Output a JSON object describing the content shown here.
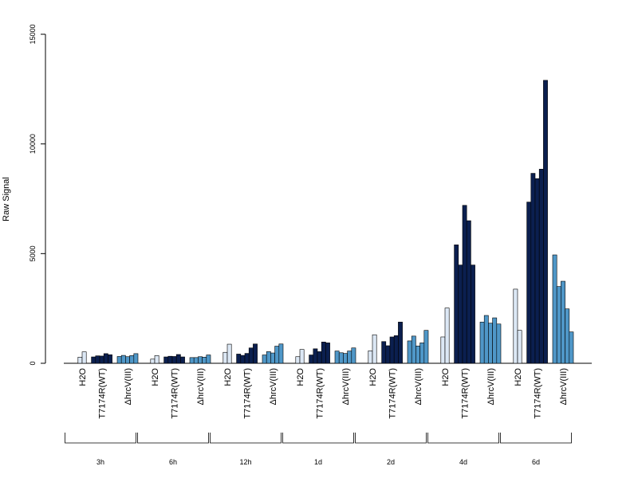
{
  "chart_data": {
    "type": "bar",
    "title": "",
    "xlabel": "",
    "ylabel": "Raw Signal",
    "ylim": [
      0,
      15000
    ],
    "yticks": [
      0,
      5000,
      10000,
      15000
    ],
    "grid": false,
    "colors": {
      "H2O": "#dce8f5",
      "T7174R(WT)": "#0b1f4f",
      "ΔhrcV(III)": "#4f97c8",
      "border": "#000000"
    },
    "groups": [
      {
        "label": "3h",
        "subgroups": [
          {
            "name": "H2O",
            "values": [
              280,
              520
            ]
          },
          {
            "name": "T7174R(WT)",
            "values": [
              290,
              340,
              330,
              440,
              390
            ]
          },
          {
            "name": "ΔhrcV(III)",
            "values": [
              310,
              360,
              300,
              350,
              440
            ]
          }
        ]
      },
      {
        "label": "6h",
        "subgroups": [
          {
            "name": "H2O",
            "values": [
              190,
              350
            ]
          },
          {
            "name": "T7174R(WT)",
            "values": [
              290,
              320,
              310,
              400,
              290
            ]
          },
          {
            "name": "ΔhrcV(III)",
            "values": [
              260,
              260,
              300,
              280,
              380
            ]
          }
        ]
      },
      {
        "label": "12h",
        "subgroups": [
          {
            "name": "H2O",
            "values": [
              500,
              870
            ]
          },
          {
            "name": "T7174R(WT)",
            "values": [
              420,
              360,
              450,
              700,
              880
            ]
          },
          {
            "name": "ΔhrcV(III)",
            "values": [
              380,
              530,
              470,
              780,
              880
            ]
          }
        ]
      },
      {
        "label": "1d",
        "subgroups": [
          {
            "name": "H2O",
            "values": [
              300,
              630
            ]
          },
          {
            "name": "T7174R(WT)",
            "values": [
              380,
              660,
              530,
              970,
              930
            ]
          },
          {
            "name": "ΔhrcV(III)",
            "values": [
              560,
              480,
              450,
              560,
              700
            ]
          }
        ]
      },
      {
        "label": "2d",
        "subgroups": [
          {
            "name": "H2O",
            "values": [
              570,
              1300
            ]
          },
          {
            "name": "T7174R(WT)",
            "values": [
              990,
              800,
              1200,
              1260,
              1880
            ]
          },
          {
            "name": "ΔhrcV(III)",
            "values": [
              1020,
              1240,
              790,
              930,
              1500
            ]
          }
        ]
      },
      {
        "label": "4d",
        "subgroups": [
          {
            "name": "H2O",
            "values": [
              1200,
              2520
            ]
          },
          {
            "name": "T7174R(WT)",
            "values": [
              5400,
              4480,
              7200,
              6500,
              4480
            ]
          },
          {
            "name": "ΔhrcV(III)",
            "values": [
              1880,
              2180,
              1830,
              2070,
              1790
            ]
          }
        ]
      },
      {
        "label": "6d",
        "subgroups": [
          {
            "name": "H2O",
            "values": [
              3380,
              1500
            ]
          },
          {
            "name": "T7174R(WT)",
            "values": [
              7350,
              8660,
              8420,
              8850,
              12900
            ]
          },
          {
            "name": "ΔhrcV(III)",
            "values": [
              4940,
              3500,
              3740,
              2480,
              1430
            ]
          }
        ]
      }
    ]
  }
}
